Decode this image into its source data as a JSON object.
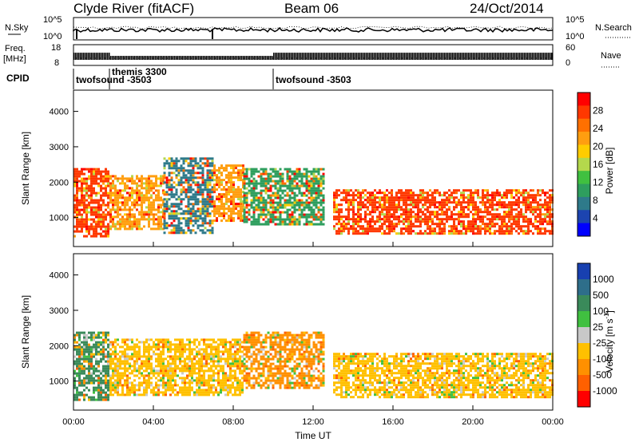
{
  "header": {
    "station": "Clyde River (fitACF)",
    "beam": "Beam 06",
    "date": "24/Oct/2014"
  },
  "top_panels": {
    "nsky_label": "N.Sky",
    "nsky_ticks": [
      "10^5",
      "10^0"
    ],
    "nsearch_label": "N.Search",
    "nsearch_ticks": [
      "10^5",
      "10^0"
    ],
    "freq_label_1": "Freq.",
    "freq_label_2": "[MHz]",
    "freq_ticks": [
      "18",
      "8"
    ],
    "nave_label": "Nave",
    "nave_ticks": [
      "60",
      "0"
    ],
    "cpid_label": "CPID",
    "cpid_segments": [
      {
        "name": "twofsound -3503",
        "start_hour": 0.0,
        "end_hour": 1.8
      },
      {
        "name": "themis 3300",
        "start_hour": 1.8,
        "end_hour": 10.0
      },
      {
        "name": "twofsound -3503",
        "start_hour": 10.0,
        "end_hour": 24.0
      }
    ]
  },
  "axes": {
    "xlabel": "Time UT",
    "x_ticks": [
      "00:00",
      "04:00",
      "08:00",
      "12:00",
      "16:00",
      "20:00",
      "00:00"
    ],
    "ylabel": "Slant Range [km]",
    "y_ticks": [
      "1000",
      "2000",
      "3000",
      "4000"
    ]
  },
  "power_colorbar": {
    "label": "Power [dB]",
    "ticks": [
      "28",
      "24",
      "20",
      "16",
      "12",
      "8",
      "4"
    ],
    "colors": [
      "#ff0000",
      "#ff3800",
      "#ff7000",
      "#ff9e10",
      "#ffcc00",
      "#b4d84c",
      "#40c040",
      "#2e9e5e",
      "#2e7a8a",
      "#1c44b0",
      "#0000ff"
    ]
  },
  "velocity_colorbar": {
    "label": "Velocity [m s",
    "label_sup": "-1",
    "label_end": "]",
    "ticks": [
      "1000",
      "500",
      "100",
      "25",
      "-25",
      "-100",
      "-500",
      "-1000"
    ],
    "colors": [
      "#1840b0",
      "#2e6e8a",
      "#3a8a5a",
      "#40c040",
      "#c8c8c8",
      "#ffc000",
      "#ff9000",
      "#ff6000",
      "#ff0000"
    ]
  },
  "chart_data": {
    "type": "heatmap",
    "x_range_hours": [
      0,
      24
    ],
    "y_range_km": [
      180,
      4600
    ],
    "power_panel": {
      "colorbar_range_db": [
        0,
        32
      ],
      "echo_regions": [
        {
          "t0": 0.0,
          "t1": 1.8,
          "r0": 500,
          "r1": 2400,
          "power_db": 28
        },
        {
          "t0": 1.8,
          "t1": 4.5,
          "r0": 700,
          "r1": 2200,
          "power_db": 24
        },
        {
          "t0": 4.5,
          "t1": 7.0,
          "r0": 600,
          "r1": 2700,
          "power_db": 8
        },
        {
          "t0": 7.0,
          "t1": 8.5,
          "r0": 900,
          "r1": 2500,
          "power_db": 22
        },
        {
          "t0": 8.5,
          "t1": 12.5,
          "r0": 800,
          "r1": 2400,
          "power_db": 10
        },
        {
          "t0": 13.0,
          "t1": 24.0,
          "r0": 550,
          "r1": 1800,
          "power_db": 28
        }
      ]
    },
    "velocity_panel": {
      "colorbar_ticks_ms": [
        1000,
        500,
        100,
        25,
        -25,
        -100,
        -500,
        -1000
      ],
      "echo_regions": [
        {
          "t0": 0.0,
          "t1": 1.8,
          "r0": 500,
          "r1": 2400,
          "velocity_ms": 100
        },
        {
          "t0": 1.8,
          "t1": 8.5,
          "r0": 600,
          "r1": 2200,
          "velocity_ms": -100
        },
        {
          "t0": 8.5,
          "t1": 12.5,
          "r0": 800,
          "r1": 2400,
          "velocity_ms": -500
        },
        {
          "t0": 13.0,
          "t1": 24.0,
          "r0": 550,
          "r1": 1800,
          "velocity_ms": -100
        }
      ]
    }
  }
}
